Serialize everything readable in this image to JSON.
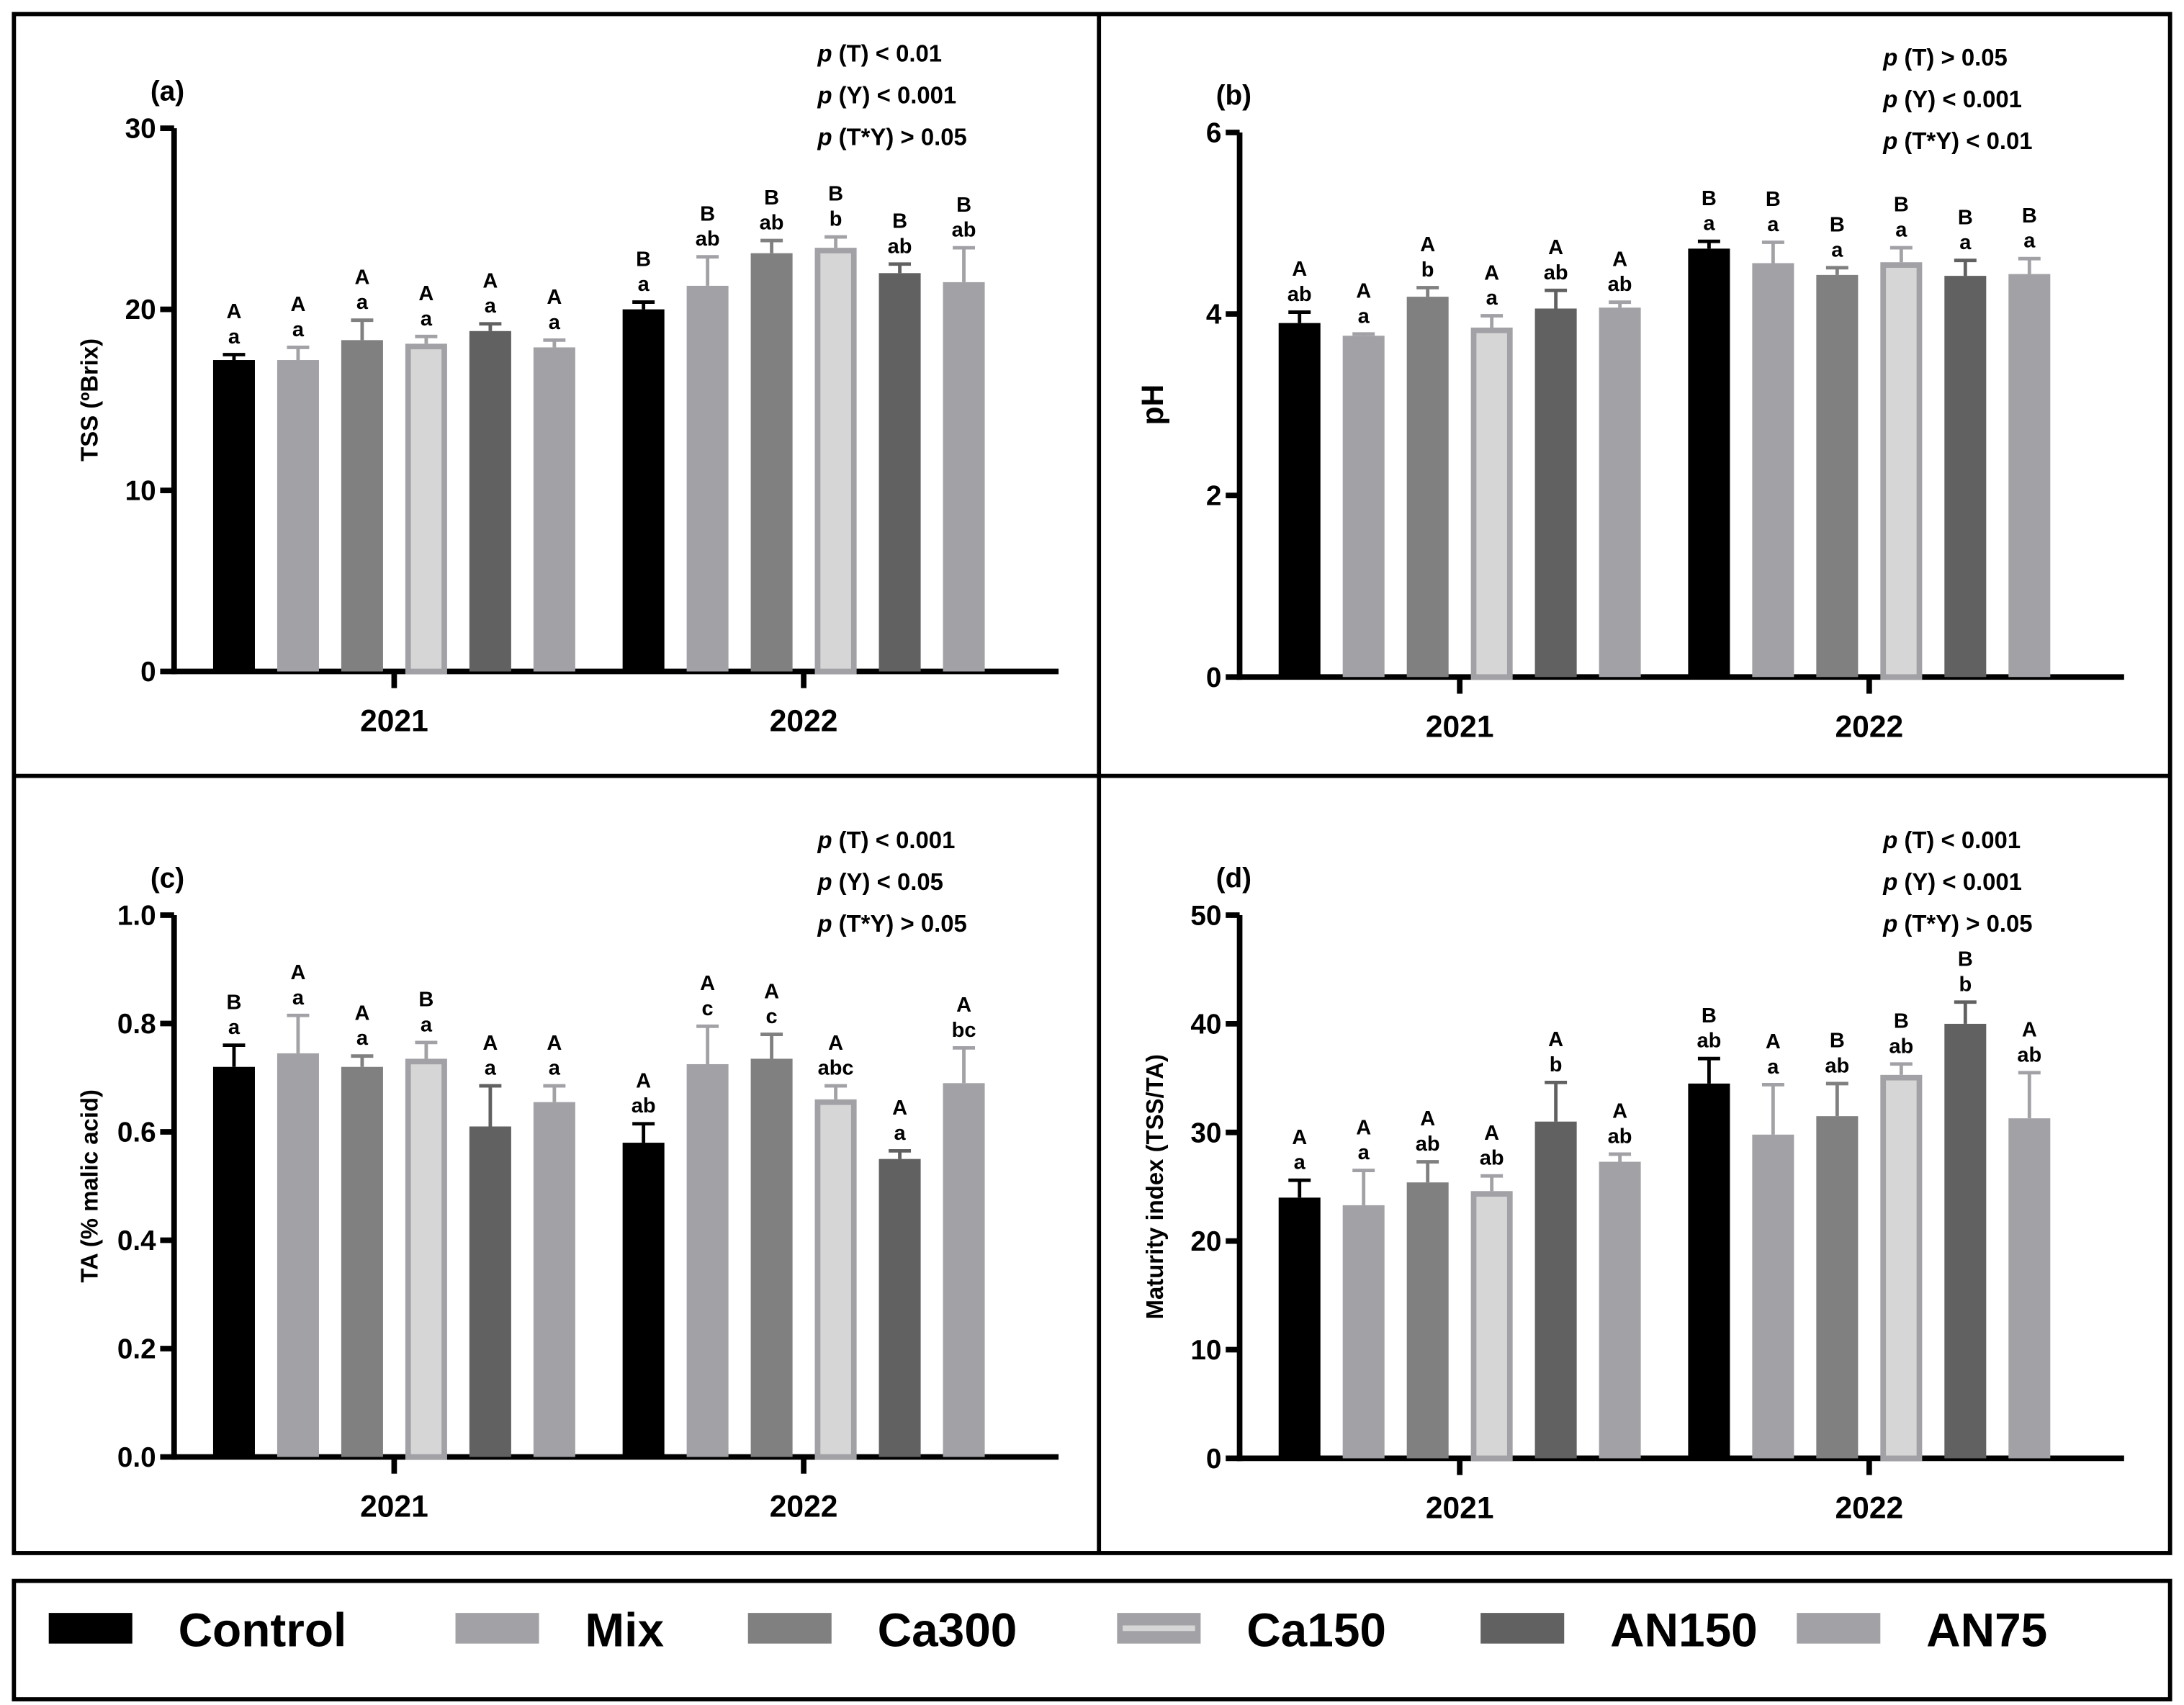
{
  "legend": [
    {
      "name": "Control",
      "color": "#000000",
      "border": "#000000"
    },
    {
      "name": "Mix",
      "color": "#a2a1a6",
      "border": "#a2a1a6"
    },
    {
      "name": "Ca300",
      "color": "#808080",
      "border": "#808080"
    },
    {
      "name": "Ca150",
      "color": "#d6d6d6",
      "border": "#a2a1a6"
    },
    {
      "name": "AN150",
      "color": "#616161",
      "border": "#616161"
    },
    {
      "name": "AN75",
      "color": "#a2a1a6",
      "border": "#a2a1a6"
    }
  ],
  "chart_data": [
    {
      "type": "bar",
      "panel": "(a)",
      "ylabel": "TSS (ºBrix)",
      "ylim": [
        0,
        30
      ],
      "yticks": [
        0,
        10,
        20,
        30
      ],
      "categories": [
        "2021",
        "2022"
      ],
      "stats": [
        "(T) < 0.01",
        "(Y) < 0.001",
        "(T*Y) > 0.05"
      ],
      "series": [
        {
          "name": "Control",
          "values": [
            17.2,
            20.0
          ],
          "errors": [
            0.3,
            0.4
          ],
          "letters": [
            [
              "A",
              "a"
            ],
            [
              "B",
              "a"
            ]
          ]
        },
        {
          "name": "Mix",
          "values": [
            17.2,
            21.3
          ],
          "errors": [
            0.7,
            1.6
          ],
          "letters": [
            [
              "A",
              "a"
            ],
            [
              "B",
              "ab"
            ]
          ]
        },
        {
          "name": "Ca300",
          "values": [
            18.3,
            23.1
          ],
          "errors": [
            1.1,
            0.7
          ],
          "letters": [
            [
              "A",
              "a"
            ],
            [
              "B",
              "ab"
            ]
          ]
        },
        {
          "name": "Ca150",
          "values": [
            18.1,
            23.4
          ],
          "errors": [
            0.4,
            0.6
          ],
          "letters": [
            [
              "A",
              "a"
            ],
            [
              "B",
              "b"
            ]
          ]
        },
        {
          "name": "AN150",
          "values": [
            18.8,
            22.0
          ],
          "errors": [
            0.4,
            0.5
          ],
          "letters": [
            [
              "A",
              "a"
            ],
            [
              "B",
              "ab"
            ]
          ]
        },
        {
          "name": "AN75",
          "values": [
            17.9,
            21.5
          ],
          "errors": [
            0.4,
            1.9
          ],
          "letters": [
            [
              "A",
              "a"
            ],
            [
              "B",
              "ab"
            ]
          ]
        }
      ]
    },
    {
      "type": "bar",
      "panel": "(b)",
      "ylabel": "pH",
      "ylim": [
        0,
        6
      ],
      "yticks": [
        0,
        2,
        4,
        6
      ],
      "categories": [
        "2021",
        "2022"
      ],
      "stats": [
        "(T) > 0.05",
        "(Y) < 0.001",
        "(T*Y) < 0.01"
      ],
      "series": [
        {
          "name": "Control",
          "values": [
            3.9,
            4.72
          ],
          "errors": [
            0.12,
            0.08
          ],
          "letters": [
            [
              "A",
              "ab"
            ],
            [
              "B",
              "a"
            ]
          ]
        },
        {
          "name": "Mix",
          "values": [
            3.76,
            4.56
          ],
          "errors": [
            0.02,
            0.23
          ],
          "letters": [
            [
              "A",
              "a"
            ],
            [
              "B",
              "a"
            ]
          ]
        },
        {
          "name": "Ca300",
          "values": [
            4.19,
            4.43
          ],
          "errors": [
            0.1,
            0.08
          ],
          "letters": [
            [
              "A",
              "b"
            ],
            [
              "B",
              "a"
            ]
          ]
        },
        {
          "name": "Ca150",
          "values": [
            3.85,
            4.57
          ],
          "errors": [
            0.13,
            0.16
          ],
          "letters": [
            [
              "A",
              "a"
            ],
            [
              "B",
              "a"
            ]
          ]
        },
        {
          "name": "AN150",
          "values": [
            4.06,
            4.42
          ],
          "errors": [
            0.2,
            0.17
          ],
          "letters": [
            [
              "A",
              "ab"
            ],
            [
              "B",
              "a"
            ]
          ]
        },
        {
          "name": "AN75",
          "values": [
            4.07,
            4.44
          ],
          "errors": [
            0.06,
            0.17
          ],
          "letters": [
            [
              "A",
              "ab"
            ],
            [
              "B",
              "a"
            ]
          ]
        }
      ]
    },
    {
      "type": "bar",
      "panel": "(c)",
      "ylabel": "TA (% malic acid)",
      "ylim": [
        0,
        1.0
      ],
      "yticks": [
        0.0,
        0.2,
        0.4,
        0.6,
        0.8,
        1.0
      ],
      "categories": [
        "2021",
        "2022"
      ],
      "stats": [
        "(T) < 0.001",
        "(Y) < 0.05",
        "(T*Y) > 0.05"
      ],
      "series": [
        {
          "name": "Control",
          "values": [
            0.72,
            0.58
          ],
          "errors": [
            0.04,
            0.035
          ],
          "letters": [
            [
              "B",
              "a"
            ],
            [
              "A",
              "ab"
            ]
          ]
        },
        {
          "name": "Mix",
          "values": [
            0.745,
            0.725
          ],
          "errors": [
            0.07,
            0.07
          ],
          "letters": [
            [
              "A",
              "a"
            ],
            [
              "A",
              "c"
            ]
          ]
        },
        {
          "name": "Ca300",
          "values": [
            0.72,
            0.735
          ],
          "errors": [
            0.02,
            0.045
          ],
          "letters": [
            [
              "A",
              "a"
            ],
            [
              "A",
              "c"
            ]
          ]
        },
        {
          "name": "Ca150",
          "values": [
            0.735,
            0.66
          ],
          "errors": [
            0.03,
            0.025
          ],
          "letters": [
            [
              "B",
              "a"
            ],
            [
              "A",
              "abc"
            ]
          ]
        },
        {
          "name": "AN150",
          "values": [
            0.61,
            0.55
          ],
          "errors": [
            0.075,
            0.015
          ],
          "letters": [
            [
              "A",
              "a"
            ],
            [
              "A",
              "a"
            ]
          ]
        },
        {
          "name": "AN75",
          "values": [
            0.655,
            0.69
          ],
          "errors": [
            0.03,
            0.065
          ],
          "letters": [
            [
              "A",
              "a"
            ],
            [
              "A",
              "bc"
            ]
          ]
        }
      ]
    },
    {
      "type": "bar",
      "panel": "(d)",
      "ylabel": "Maturity index (TSS/TA)",
      "ylim": [
        0,
        50
      ],
      "yticks": [
        0,
        10,
        20,
        30,
        40,
        50
      ],
      "categories": [
        "2021",
        "2022"
      ],
      "stats": [
        "(T) < 0.001",
        "(Y) < 0.001",
        "(T*Y) > 0.05"
      ],
      "series": [
        {
          "name": "Control",
          "values": [
            24.0,
            34.5
          ],
          "errors": [
            1.6,
            2.3
          ],
          "letters": [
            [
              "A",
              "a"
            ],
            [
              "B",
              "ab"
            ]
          ]
        },
        {
          "name": "Mix",
          "values": [
            23.3,
            29.8
          ],
          "errors": [
            3.2,
            4.6
          ],
          "letters": [
            [
              "A",
              "a"
            ],
            [
              "A",
              "a"
            ]
          ]
        },
        {
          "name": "Ca300",
          "values": [
            25.4,
            31.5
          ],
          "errors": [
            1.9,
            3.0
          ],
          "letters": [
            [
              "A",
              "ab"
            ],
            [
              "B",
              "ab"
            ]
          ]
        },
        {
          "name": "Ca150",
          "values": [
            24.6,
            35.3
          ],
          "errors": [
            1.4,
            1.0
          ],
          "letters": [
            [
              "A",
              "ab"
            ],
            [
              "B",
              "ab"
            ]
          ]
        },
        {
          "name": "AN150",
          "values": [
            31.0,
            40.0
          ],
          "errors": [
            3.6,
            2.0
          ],
          "letters": [
            [
              "A",
              "b"
            ],
            [
              "B",
              "b"
            ]
          ]
        },
        {
          "name": "AN75",
          "values": [
            27.3,
            31.3
          ],
          "errors": [
            0.7,
            4.2
          ],
          "letters": [
            [
              "A",
              "ab"
            ],
            [
              "A",
              "ab"
            ]
          ]
        }
      ]
    }
  ],
  "p_symbol": "p"
}
